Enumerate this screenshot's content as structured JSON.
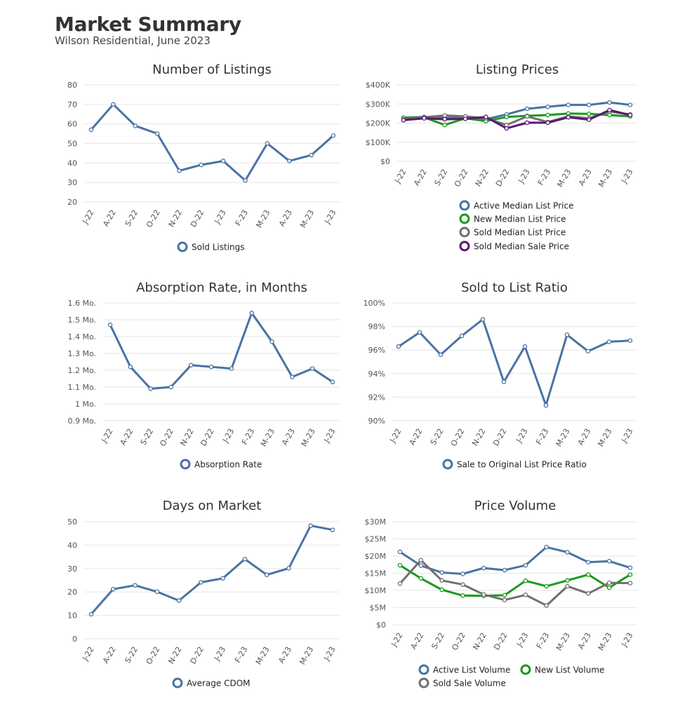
{
  "page": {
    "title": "Market Summary",
    "subtitle": "Wilson Residential, June 2023"
  },
  "colors": {
    "blue": "#4a72a4",
    "green": "#1a9a1a",
    "gray": "#707070",
    "purple": "#5a1870",
    "grid": "#e6e6e6"
  },
  "chart_data": [
    {
      "id": "listings",
      "type": "line",
      "title": "Number of Listings",
      "categories": [
        "J-22",
        "A-22",
        "S-22",
        "O-22",
        "N-22",
        "D-22",
        "J-23",
        "F-23",
        "M-23",
        "A-23",
        "M-23",
        "J-23"
      ],
      "yticks": [
        "80",
        "70",
        "60",
        "50",
        "40",
        "30",
        "20"
      ],
      "ylim": [
        20,
        80
      ],
      "ystep": 10,
      "series": [
        {
          "name": "Sold Listings",
          "color": "#4a72a4",
          "values": [
            57,
            70,
            59,
            55,
            36,
            39,
            41,
            31,
            50,
            41,
            44,
            54
          ]
        }
      ]
    },
    {
      "id": "prices",
      "type": "line",
      "title": "Listing Prices",
      "categories": [
        "J-22",
        "A-22",
        "S-22",
        "O-22",
        "N-22",
        "D-22",
        "J-23",
        "F-23",
        "M-23",
        "A-23",
        "M-23",
        "J-23"
      ],
      "yticks": [
        "$400K",
        "$300K",
        "$200K",
        "$100K",
        "$0"
      ],
      "ylim": [
        0,
        400000
      ],
      "ystep": 100000,
      "series": [
        {
          "name": "Active Median List Price",
          "color": "#4a72a4",
          "values": [
            228000,
            232000,
            228000,
            228000,
            220000,
            245000,
            275000,
            285000,
            295000,
            295000,
            308000,
            295000
          ]
        },
        {
          "name": "New Median List Price",
          "color": "#1a9a1a",
          "values": [
            228000,
            230000,
            190000,
            225000,
            210000,
            232000,
            238000,
            242000,
            250000,
            248000,
            242000,
            235000
          ]
        },
        {
          "name": "Sold Median List Price",
          "color": "#707070",
          "values": [
            220000,
            230000,
            240000,
            235000,
            225000,
            190000,
            235000,
            205000,
            235000,
            225000,
            260000,
            245000
          ]
        },
        {
          "name": "Sold Median Sale Price",
          "color": "#5a1870",
          "values": [
            215000,
            225000,
            220000,
            222000,
            232000,
            172000,
            202000,
            202000,
            230000,
            218000,
            268000,
            242000
          ]
        }
      ]
    },
    {
      "id": "absorption",
      "type": "line",
      "title": "Absorption Rate, in Months",
      "categories": [
        "J-22",
        "A-22",
        "S-22",
        "O-22",
        "N-22",
        "D-22",
        "J-23",
        "F-23",
        "M-23",
        "A-23",
        "M-23",
        "J-23"
      ],
      "yticks": [
        "1.6 Mo.",
        "1.5 Mo.",
        "1.4 Mo.",
        "1.3 Mo.",
        "1.2 Mo.",
        "1.1 Mo.",
        "1 Mo.",
        "0.9 Mo."
      ],
      "ylim": [
        0.9,
        1.6
      ],
      "ystep": 0.1,
      "series": [
        {
          "name": "Absorption Rate",
          "color": "#4a72a4",
          "values": [
            1.47,
            1.22,
            1.09,
            1.1,
            1.23,
            1.22,
            1.21,
            1.54,
            1.37,
            1.16,
            1.21,
            1.13
          ]
        }
      ]
    },
    {
      "id": "ratio",
      "type": "line",
      "title": "Sold to List Ratio",
      "categories": [
        "J-22",
        "A-22",
        "S-22",
        "O-22",
        "N-22",
        "D-22",
        "J-23",
        "F-23",
        "M-23",
        "A-23",
        "M-23",
        "J-23"
      ],
      "yticks": [
        "100%",
        "98%",
        "96%",
        "94%",
        "92%",
        "90%"
      ],
      "ylim": [
        90,
        100
      ],
      "ystep": 2,
      "series": [
        {
          "name": "Sale to Original List Price Ratio",
          "color": "#4a72a4",
          "values": [
            96.3,
            97.5,
            95.6,
            97.2,
            98.6,
            93.3,
            96.3,
            91.3,
            97.3,
            95.9,
            96.7,
            96.8
          ]
        }
      ]
    },
    {
      "id": "dom",
      "type": "line",
      "title": "Days on Market",
      "categories": [
        "J-22",
        "A-22",
        "S-22",
        "O-22",
        "N-22",
        "D-22",
        "J-23",
        "F-23",
        "M-23",
        "A-23",
        "M-23",
        "J-23"
      ],
      "yticks": [
        "50",
        "40",
        "30",
        "20",
        "10",
        "0"
      ],
      "ylim": [
        0,
        50
      ],
      "ystep": 10,
      "series": [
        {
          "name": "Average CDOM",
          "color": "#4a72a4",
          "values": [
            10.5,
            21.2,
            22.8,
            20.1,
            16.3,
            24.1,
            25.8,
            34.0,
            27.3,
            30.1,
            48.3,
            46.5
          ]
        }
      ]
    },
    {
      "id": "volume",
      "type": "line",
      "title": "Price Volume",
      "categories": [
        "J-22",
        "A-22",
        "S-22",
        "O-22",
        "N-22",
        "D-22",
        "J-23",
        "F-23",
        "M-23",
        "A-23",
        "M-23",
        "J-23"
      ],
      "yticks": [
        "$30M",
        "$25M",
        "$20M",
        "$15M",
        "$10M",
        "$5M",
        "$0"
      ],
      "ylim": [
        0,
        30
      ],
      "ystep": 5,
      "series": [
        {
          "name": "Active List Volume",
          "color": "#4a72a4",
          "values": [
            21.2,
            17.2,
            15.2,
            14.8,
            16.5,
            15.9,
            17.3,
            22.6,
            21.1,
            18.2,
            18.5,
            16.6
          ]
        },
        {
          "name": "New List Volume",
          "color": "#1a9a1a",
          "values": [
            17.3,
            13.5,
            10.2,
            8.5,
            8.4,
            8.6,
            12.8,
            11.2,
            12.9,
            14.6,
            10.8,
            14.6
          ]
        },
        {
          "name": "Sold Sale Volume",
          "color": "#707070",
          "values": [
            12.0,
            18.8,
            12.9,
            11.7,
            8.8,
            7.2,
            8.7,
            5.6,
            11.2,
            9.1,
            12.2,
            12.1
          ]
        }
      ]
    }
  ]
}
